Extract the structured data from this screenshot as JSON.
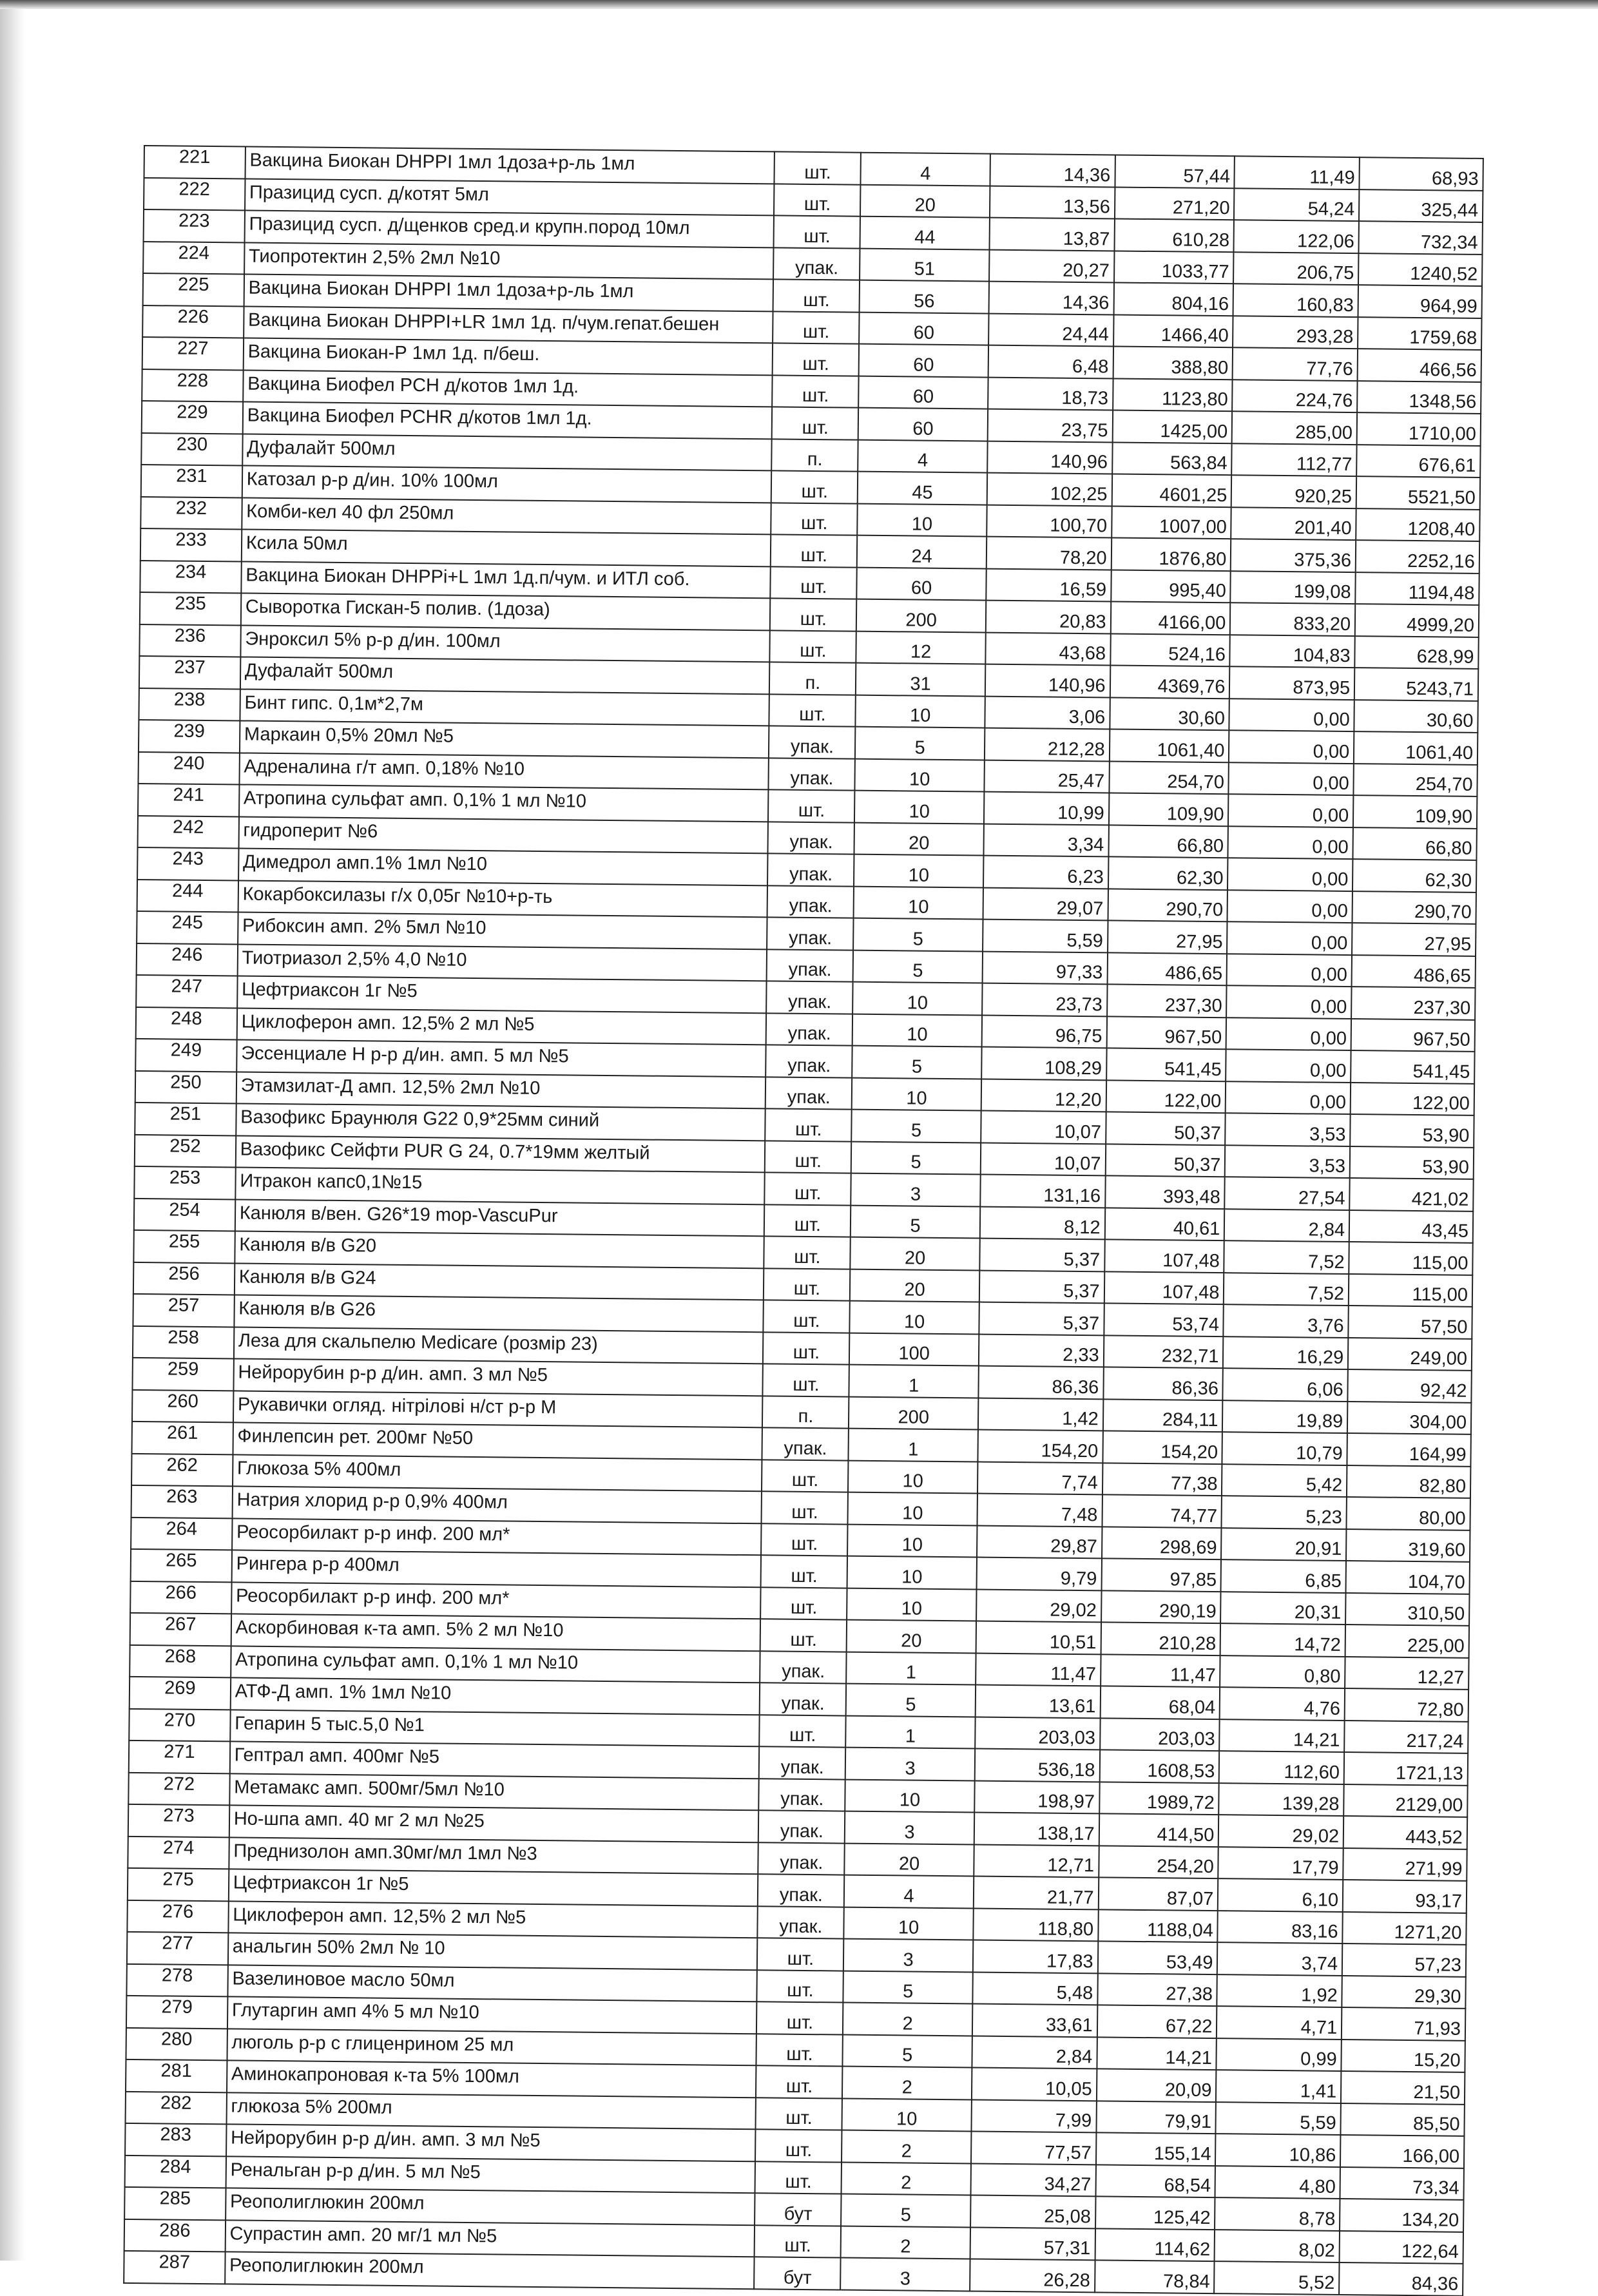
{
  "table": {
    "rows": [
      [
        "221",
        "Вакцина Биокан DHPPI 1мл 1доза+р-ль 1мл",
        "шт.",
        "4",
        "14,36",
        "57,44",
        "11,49",
        "68,93"
      ],
      [
        "222",
        "Празицид сусп. д/котят 5мл",
        "шт.",
        "20",
        "13,56",
        "271,20",
        "54,24",
        "325,44"
      ],
      [
        "223",
        "Празицид сусп. д/щенков сред.и крупн.пород 10мл",
        "шт.",
        "44",
        "13,87",
        "610,28",
        "122,06",
        "732,34"
      ],
      [
        "224",
        "Тиопротектин 2,5% 2мл №10",
        "упак.",
        "51",
        "20,27",
        "1033,77",
        "206,75",
        "1240,52"
      ],
      [
        "225",
        "Вакцина Биокан DHPPI 1мл 1доза+р-ль 1мл",
        "шт.",
        "56",
        "14,36",
        "804,16",
        "160,83",
        "964,99"
      ],
      [
        "226",
        "Вакцина Биокан DHPPI+LR 1мл 1д. п/чум.гепат.бешен",
        "шт.",
        "60",
        "24,44",
        "1466,40",
        "293,28",
        "1759,68"
      ],
      [
        "227",
        "Вакцина Биокан-Р 1мл 1д. п/беш.",
        "шт.",
        "60",
        "6,48",
        "388,80",
        "77,76",
        "466,56"
      ],
      [
        "228",
        "Вакцина Биофел PCH д/котов 1мл 1д.",
        "шт.",
        "60",
        "18,73",
        "1123,80",
        "224,76",
        "1348,56"
      ],
      [
        "229",
        "Вакцина Биофел PCHR д/котов 1мл 1д.",
        "шт.",
        "60",
        "23,75",
        "1425,00",
        "285,00",
        "1710,00"
      ],
      [
        "230",
        "Дуфалайт 500мл",
        "п.",
        "4",
        "140,96",
        "563,84",
        "112,77",
        "676,61"
      ],
      [
        "231",
        "Катозал р-р д/ин. 10% 100мл",
        "шт.",
        "45",
        "102,25",
        "4601,25",
        "920,25",
        "5521,50"
      ],
      [
        "232",
        "Комби-кел 40 фл 250мл",
        "шт.",
        "10",
        "100,70",
        "1007,00",
        "201,40",
        "1208,40"
      ],
      [
        "233",
        "Ксила 50мл",
        "шт.",
        "24",
        "78,20",
        "1876,80",
        "375,36",
        "2252,16"
      ],
      [
        "234",
        "Вакцина Биокан DHPPi+L 1мл 1д.п/чум. и ИТЛ соб.",
        "шт.",
        "60",
        "16,59",
        "995,40",
        "199,08",
        "1194,48"
      ],
      [
        "235",
        "Сыворотка Гискан-5 полив. (1доза)",
        "шт.",
        "200",
        "20,83",
        "4166,00",
        "833,20",
        "4999,20"
      ],
      [
        "236",
        "Энроксил 5% р-р д/ин. 100мл",
        "шт.",
        "12",
        "43,68",
        "524,16",
        "104,83",
        "628,99"
      ],
      [
        "237",
        "Дуфалайт 500мл",
        "п.",
        "31",
        "140,96",
        "4369,76",
        "873,95",
        "5243,71"
      ],
      [
        "238",
        "Бинт гипс. 0,1м*2,7м",
        "шт.",
        "10",
        "3,06",
        "30,60",
        "0,00",
        "30,60"
      ],
      [
        "239",
        "Маркаин 0,5% 20мл №5",
        "упак.",
        "5",
        "212,28",
        "1061,40",
        "0,00",
        "1061,40"
      ],
      [
        "240",
        "Адреналина г/т амп. 0,18% №10",
        "упак.",
        "10",
        "25,47",
        "254,70",
        "0,00",
        "254,70"
      ],
      [
        "241",
        "Атропина сульфат амп. 0,1%  1 мл  №10",
        "шт.",
        "10",
        "10,99",
        "109,90",
        "0,00",
        "109,90"
      ],
      [
        "242",
        "гидроперит №6",
        "упак.",
        "20",
        "3,34",
        "66,80",
        "0,00",
        "66,80"
      ],
      [
        "243",
        "Димедрол амп.1% 1мл №10",
        "упак.",
        "10",
        "6,23",
        "62,30",
        "0,00",
        "62,30"
      ],
      [
        "244",
        "Кокарбоксилазы г/х 0,05г №10+р-ть",
        "упак.",
        "10",
        "29,07",
        "290,70",
        "0,00",
        "290,70"
      ],
      [
        "245",
        "Рибоксин амп. 2% 5мл №10",
        "упак.",
        "5",
        "5,59",
        "27,95",
        "0,00",
        "27,95"
      ],
      [
        "246",
        "Тиотриазол 2,5% 4,0 №10",
        "упак.",
        "5",
        "97,33",
        "486,65",
        "0,00",
        "486,65"
      ],
      [
        "247",
        "Цефтриаксон 1г №5",
        "упак.",
        "10",
        "23,73",
        "237,30",
        "0,00",
        "237,30"
      ],
      [
        "248",
        "Циклоферон амп. 12,5%  2 мл  №5",
        "упак.",
        "10",
        "96,75",
        "967,50",
        "0,00",
        "967,50"
      ],
      [
        "249",
        "Эссенциале Н р-р  д/ин. амп. 5 мл  №5",
        "упак.",
        "5",
        "108,29",
        "541,45",
        "0,00",
        "541,45"
      ],
      [
        "250",
        "Этамзилат-Д амп. 12,5% 2мл №10",
        "упак.",
        "10",
        "12,20",
        "122,00",
        "0,00",
        "122,00"
      ],
      [
        "251",
        "Вазофикс Браунюля G22 0,9*25мм синий",
        "шт.",
        "5",
        "10,07",
        "50,37",
        "3,53",
        "53,90"
      ],
      [
        "252",
        "Вазофикс Сейфти PUR G 24, 0.7*19мм желтый",
        "шт.",
        "5",
        "10,07",
        "50,37",
        "3,53",
        "53,90"
      ],
      [
        "253",
        "Итракон капс0,1№15",
        "шт.",
        "3",
        "131,16",
        "393,48",
        "27,54",
        "421,02"
      ],
      [
        "254",
        "Канюля в/вен. G26*19 mop-VascuPur",
        "шт.",
        "5",
        "8,12",
        "40,61",
        "2,84",
        "43,45"
      ],
      [
        "255",
        "Канюля в/в G20",
        "шт.",
        "20",
        "5,37",
        "107,48",
        "7,52",
        "115,00"
      ],
      [
        "256",
        "Канюля в/в G24",
        "шт.",
        "20",
        "5,37",
        "107,48",
        "7,52",
        "115,00"
      ],
      [
        "257",
        "Канюля в/в G26",
        "шт.",
        "10",
        "5,37",
        "53,74",
        "3,76",
        "57,50"
      ],
      [
        "258",
        "Леза для скальпелю Medicare (розмір 23)",
        "шт.",
        "100",
        "2,33",
        "232,71",
        "16,29",
        "249,00"
      ],
      [
        "259",
        "Нейрорубин р-р  д/ин.  амп. 3 мл №5",
        "шт.",
        "1",
        "86,36",
        "86,36",
        "6,06",
        "92,42"
      ],
      [
        "260",
        "Рукавички огляд. нітрілові н/ст р-р М",
        "п.",
        "200",
        "1,42",
        "284,11",
        "19,89",
        "304,00"
      ],
      [
        "261",
        "Финлепсин рет. 200мг №50",
        "упак.",
        "1",
        "154,20",
        "154,20",
        "10,79",
        "164,99"
      ],
      [
        "262",
        "Глюкоза 5% 400мл",
        "шт.",
        "10",
        "7,74",
        "77,38",
        "5,42",
        "82,80"
      ],
      [
        "263",
        "Натрия хлорид р-р 0,9% 400мл",
        "шт.",
        "10",
        "7,48",
        "74,77",
        "5,23",
        "80,00"
      ],
      [
        "264",
        "Реосорбилакт р-р инф. 200 мл*",
        "шт.",
        "10",
        "29,87",
        "298,69",
        "20,91",
        "319,60"
      ],
      [
        "265",
        "Рингера р-р 400мл",
        "шт.",
        "10",
        "9,79",
        "97,85",
        "6,85",
        "104,70"
      ],
      [
        "266",
        "Реосорбилакт р-р инф. 200 мл*",
        "шт.",
        "10",
        "29,02",
        "290,19",
        "20,31",
        "310,50"
      ],
      [
        "267",
        "Аскорбиновая к-та  амп. 5% 2 мл №10",
        "шт.",
        "20",
        "10,51",
        "210,28",
        "14,72",
        "225,00"
      ],
      [
        "268",
        "Атропина сульфат амп. 0,1%  1 мл  №10",
        "упак.",
        "1",
        "11,47",
        "11,47",
        "0,80",
        "12,27"
      ],
      [
        "269",
        "АТФ-Д амп. 1% 1мл №10",
        "упак.",
        "5",
        "13,61",
        "68,04",
        "4,76",
        "72,80"
      ],
      [
        "270",
        "Гепарин 5 тыс.5,0 №1",
        "шт.",
        "1",
        "203,03",
        "203,03",
        "14,21",
        "217,24"
      ],
      [
        "271",
        "Гептрал амп. 400мг №5",
        "упак.",
        "3",
        "536,18",
        "1608,53",
        "112,60",
        "1721,13"
      ],
      [
        "272",
        "Метамакс амп. 500мг/5мл №10",
        "упак.",
        "10",
        "198,97",
        "1989,72",
        "139,28",
        "2129,00"
      ],
      [
        "273",
        "Но-шпа амп. 40 мг 2 мл  №25",
        "упак.",
        "3",
        "138,17",
        "414,50",
        "29,02",
        "443,52"
      ],
      [
        "274",
        "Преднизолон амп.30мг/мл 1мл №3",
        "упак.",
        "20",
        "12,71",
        "254,20",
        "17,79",
        "271,99"
      ],
      [
        "275",
        "Цефтриаксон 1г №5",
        "упак.",
        "4",
        "21,77",
        "87,07",
        "6,10",
        "93,17"
      ],
      [
        "276",
        "Циклоферон амп. 12,5%  2 мл  №5",
        "упак.",
        "10",
        "118,80",
        "1188,04",
        "83,16",
        "1271,20"
      ],
      [
        "277",
        "анальгин 50% 2мл № 10",
        "шт.",
        "3",
        "17,83",
        "53,49",
        "3,74",
        "57,23"
      ],
      [
        "278",
        "Вазелиновое масло 50мл",
        "шт.",
        "5",
        "5,48",
        "27,38",
        "1,92",
        "29,30"
      ],
      [
        "279",
        "Глутаргин амп 4%  5 мл №10",
        "шт.",
        "2",
        "33,61",
        "67,22",
        "4,71",
        "71,93"
      ],
      [
        "280",
        "люголь р-р с глиценрином 25 мл",
        "шт.",
        "5",
        "2,84",
        "14,21",
        "0,99",
        "15,20"
      ],
      [
        "281",
        "Аминокапроновая к-та 5% 100мл",
        "шт.",
        "2",
        "10,05",
        "20,09",
        "1,41",
        "21,50"
      ],
      [
        "282",
        "глюкоза 5% 200мл",
        "шт.",
        "10",
        "7,99",
        "79,91",
        "5,59",
        "85,50"
      ],
      [
        "283",
        "Нейрорубин р-р  д/ин.  амп. 3 мл №5",
        "шт.",
        "2",
        "77,57",
        "155,14",
        "10,86",
        "166,00"
      ],
      [
        "284",
        "Ренальган р-р д/ин. 5 мл  №5",
        "шт.",
        "2",
        "34,27",
        "68,54",
        "4,80",
        "73,34"
      ],
      [
        "285",
        "Реополиглюкин 200мл",
        "бут",
        "5",
        "25,08",
        "125,42",
        "8,78",
        "134,20"
      ],
      [
        "286",
        "Супрастин амп. 20 мг/1 мл  №5",
        "шт.",
        "2",
        "57,31",
        "114,62",
        "8,02",
        "122,64"
      ],
      [
        "287",
        "Реополиглюкин 200мл",
        "бут",
        "3",
        "26,28",
        "78,84",
        "5,52",
        "84,36"
      ]
    ]
  }
}
